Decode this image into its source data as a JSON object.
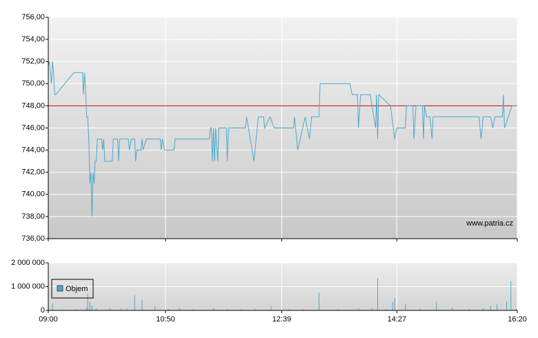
{
  "chart_data": [
    {
      "type": "line",
      "x": [
        "09:00",
        "09:01",
        "09:03",
        "09:04",
        "09:05",
        "09:06",
        "09:07",
        "09:24",
        "09:32",
        "09:33",
        "09:34",
        "09:35",
        "09:36",
        "09:37",
        "09:38",
        "09:39",
        "09:40",
        "09:41",
        "09:42",
        "09:43",
        "09:44",
        "09:45",
        "09:46",
        "09:50",
        "09:51",
        "09:52",
        "09:53",
        "10:00",
        "10:01",
        "10:05",
        "10:06",
        "10:07",
        "10:15",
        "10:16",
        "10:18",
        "10:21",
        "10:22",
        "10:23",
        "10:27",
        "10:28",
        "10:29",
        "10:32",
        "10:45",
        "10:46",
        "10:47",
        "10:49",
        "10:58",
        "10:59",
        "11:31",
        "11:32",
        "11:33",
        "11:34",
        "11:35",
        "11:36",
        "11:37",
        "11:39",
        "11:40",
        "11:47",
        "11:48",
        "11:49",
        "12:05",
        "12:06",
        "12:13",
        "12:17",
        "12:22",
        "12:23",
        "12:28",
        "12:32",
        "12:50",
        "12:51",
        "12:54",
        "13:01",
        "13:05",
        "13:07",
        "13:14",
        "13:15",
        "13:43",
        "13:45",
        "13:50",
        "13:51",
        "13:53",
        "14:02",
        "14:07",
        "14:08",
        "14:09",
        "14:10",
        "14:21",
        "14:25",
        "14:27",
        "14:35",
        "14:36",
        "14:42",
        "14:43",
        "14:45",
        "14:51",
        "14:52",
        "14:53",
        "14:55",
        "14:58",
        "15:00",
        "15:01",
        "15:44",
        "15:46",
        "15:48",
        "15:55",
        "15:57",
        "15:59",
        "16:06",
        "16:07",
        "16:08",
        "16:15",
        "16:20"
      ],
      "values": [
        751.6,
        752,
        750,
        752,
        751,
        749,
        749,
        751,
        751,
        749,
        751,
        749.5,
        747,
        747,
        745,
        741,
        742,
        738,
        742,
        741,
        743,
        743,
        745,
        745,
        744,
        745,
        743,
        743,
        745,
        745,
        743,
        745,
        745,
        744,
        745,
        745,
        743,
        744,
        744,
        745,
        744,
        745,
        745,
        744,
        745,
        744,
        744,
        745,
        745,
        746,
        746,
        743,
        746,
        743,
        746,
        743,
        746,
        746,
        743,
        746,
        746,
        747,
        743,
        747,
        747,
        746,
        747,
        746,
        746,
        747,
        744,
        747,
        745,
        747,
        747,
        750,
        750,
        749,
        749,
        746,
        749,
        749,
        746,
        749,
        745,
        749,
        748,
        745,
        746,
        746,
        748,
        748,
        745,
        748,
        748,
        745,
        748,
        747,
        747,
        745,
        747,
        747,
        745,
        747,
        747,
        746,
        747,
        747,
        749,
        746,
        748,
        748
      ],
      "color": "#4aa8cc",
      "xlim": [
        "09:00",
        "16:20"
      ],
      "ylim": [
        736,
        756
      ],
      "yticks": [
        {
          "value": 736,
          "label": "736,00"
        },
        {
          "value": 738,
          "label": "738,00"
        },
        {
          "value": 740,
          "label": "740,00"
        },
        {
          "value": 742,
          "label": "742,00"
        },
        {
          "value": 744,
          "label": "744,00"
        },
        {
          "value": 746,
          "label": "746,00"
        },
        {
          "value": 748,
          "label": "748,00"
        },
        {
          "value": 750,
          "label": "750,00"
        },
        {
          "value": 752,
          "label": "752,00"
        },
        {
          "value": 754,
          "label": "754,00"
        },
        {
          "value": 756,
          "label": "756,00"
        }
      ],
      "reference_line": {
        "value": 748,
        "color": "#cc0000"
      },
      "source": "www.patria.cz",
      "grid": true
    },
    {
      "type": "bar",
      "x": [
        "09:04",
        "09:13",
        "09:26",
        "09:36",
        "09:37",
        "09:39",
        "09:41",
        "09:45",
        "09:58",
        "10:08",
        "10:14",
        "10:21",
        "10:28",
        "10:40",
        "10:53",
        "11:03",
        "11:16",
        "11:35",
        "11:48",
        "12:01",
        "12:14",
        "12:29",
        "12:46",
        "12:59",
        "13:14",
        "13:32",
        "13:51",
        "14:04",
        "14:09",
        "14:17",
        "14:23",
        "14:25",
        "14:35",
        "14:49",
        "15:04",
        "15:19",
        "15:35",
        "15:48",
        "15:55",
        "16:01",
        "16:10",
        "16:14",
        "16:19"
      ],
      "series": [
        {
          "name": "Objem",
          "color": "#4aa8cc",
          "values": [
            300000,
            40000,
            60000,
            120000,
            700000,
            350000,
            200000,
            80000,
            100000,
            80000,
            60000,
            640000,
            430000,
            170000,
            60000,
            100000,
            50000,
            80000,
            60000,
            50000,
            70000,
            170000,
            60000,
            50000,
            750000,
            60000,
            80000,
            90000,
            1360000,
            60000,
            350000,
            520000,
            260000,
            70000,
            370000,
            120000,
            60000,
            80000,
            200000,
            260000,
            380000,
            1220000,
            60000
          ]
        }
      ],
      "xlim": [
        "09:00",
        "16:20"
      ],
      "xticks": [
        "09:00",
        "10:50",
        "12:39",
        "14:27",
        "16:20"
      ],
      "ylim": [
        0,
        2000000
      ],
      "yticks": [
        0,
        {
          "value": 1000000,
          "label": "1 000 000"
        },
        {
          "value": 2000000,
          "label": "2 000 000"
        }
      ],
      "grid": true
    }
  ]
}
